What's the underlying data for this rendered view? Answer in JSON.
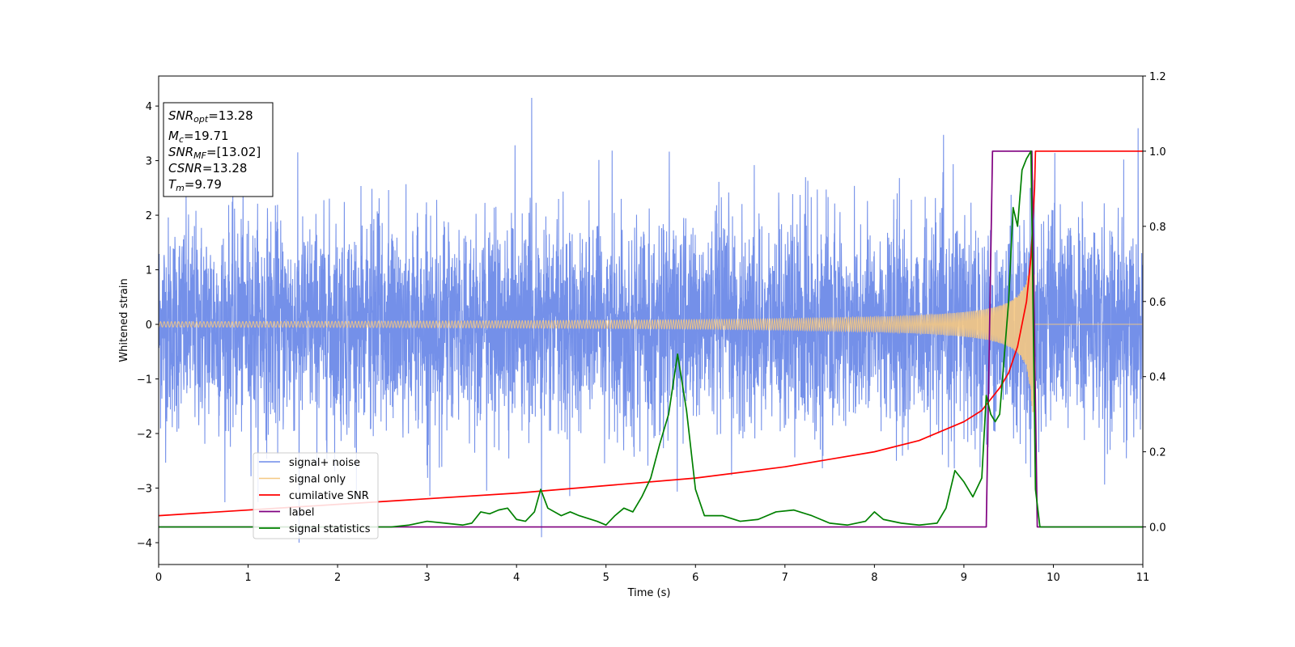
{
  "chart_data": {
    "type": "line",
    "xlabel": "Time (s)",
    "ylabel": "Whitened strain",
    "xlim": [
      0,
      11
    ],
    "ylim": [
      -4.4,
      4.55
    ],
    "y2lim": [
      -0.1,
      1.2
    ],
    "x_ticks": [
      "0",
      "1",
      "2",
      "3",
      "4",
      "5",
      "6",
      "7",
      "8",
      "9",
      "10",
      "11"
    ],
    "y_ticks": [
      "4",
      "3",
      "2",
      "1",
      "0",
      "−1",
      "−2",
      "−3",
      "−4"
    ],
    "y2_ticks": [
      "1.2",
      "1.0",
      "0.8",
      "0.6",
      "0.4",
      "0.2",
      "0.0"
    ],
    "grid": false,
    "legend_position": "lower-left",
    "info_box": {
      "snr_opt": {
        "sym": "SNR",
        "sub": "opt",
        "value": "=13.28"
      },
      "mc": {
        "sym": "M",
        "sub": "c",
        "value": "=19.71"
      },
      "snr_mf": {
        "sym": "SNR",
        "sub": "MF",
        "value": "=[13.02]"
      },
      "csnr": {
        "sym": "CSNR",
        "value": "=13.28"
      },
      "tm": {
        "sym": "T",
        "sub": "m",
        "value": "=9.79"
      }
    },
    "series": [
      {
        "name": "signal+ noise",
        "color": "#6d8ae8",
        "axis": "left",
        "kind": "noise",
        "amplitude_envelope": [
          -3.3,
          4.15
        ],
        "spikes": [
          [
            4.17,
            4.15
          ],
          [
            4.28,
            -3.9
          ],
          [
            1.57,
            -4.0
          ]
        ]
      },
      {
        "name": "signal only",
        "color": "#f5c882",
        "axis": "left",
        "kind": "chirp",
        "start_amplitude": 0.05,
        "peak_time": 9.79,
        "peak_amplitude": 2.0
      },
      {
        "name": "cumilative SNR",
        "color": "#ff0000",
        "axis": "right",
        "x": [
          0,
          2,
          4,
          6,
          7,
          8,
          8.5,
          9,
          9.2,
          9.4,
          9.5,
          9.6,
          9.7,
          9.75,
          9.79,
          9.8,
          11
        ],
        "y": [
          0.03,
          0.06,
          0.09,
          0.13,
          0.16,
          0.2,
          0.23,
          0.28,
          0.31,
          0.37,
          0.41,
          0.48,
          0.6,
          0.72,
          0.9,
          1.0,
          1.0
        ]
      },
      {
        "name": "label",
        "color": "#800080",
        "axis": "right",
        "x": [
          0,
          9.25,
          9.32,
          9.76,
          9.82,
          11
        ],
        "y": [
          0,
          0,
          1,
          1,
          0,
          0
        ]
      },
      {
        "name": "signal statistics",
        "color": "#008000",
        "axis": "right",
        "x": [
          0,
          2.4,
          2.6,
          2.8,
          3.0,
          3.2,
          3.4,
          3.5,
          3.6,
          3.7,
          3.8,
          3.9,
          4.0,
          4.1,
          4.2,
          4.27,
          4.35,
          4.5,
          4.6,
          4.7,
          4.9,
          5.0,
          5.1,
          5.2,
          5.3,
          5.4,
          5.5,
          5.6,
          5.7,
          5.8,
          5.9,
          6.0,
          6.1,
          6.3,
          6.5,
          6.7,
          6.9,
          7.1,
          7.3,
          7.5,
          7.7,
          7.9,
          8.0,
          8.1,
          8.3,
          8.5,
          8.7,
          8.8,
          8.9,
          9.0,
          9.1,
          9.2,
          9.25,
          9.3,
          9.35,
          9.4,
          9.5,
          9.55,
          9.6,
          9.65,
          9.7,
          9.75,
          9.8,
          9.85,
          10.0,
          11
        ],
        "y": [
          0.0,
          0.0,
          0.0,
          0.005,
          0.015,
          0.01,
          0.005,
          0.01,
          0.04,
          0.035,
          0.045,
          0.05,
          0.02,
          0.015,
          0.04,
          0.1,
          0.05,
          0.03,
          0.04,
          0.03,
          0.015,
          0.005,
          0.03,
          0.05,
          0.04,
          0.08,
          0.13,
          0.22,
          0.3,
          0.46,
          0.31,
          0.1,
          0.03,
          0.03,
          0.015,
          0.02,
          0.04,
          0.045,
          0.03,
          0.01,
          0.005,
          0.015,
          0.04,
          0.02,
          0.01,
          0.005,
          0.01,
          0.05,
          0.15,
          0.12,
          0.08,
          0.13,
          0.35,
          0.3,
          0.28,
          0.3,
          0.6,
          0.85,
          0.8,
          0.95,
          0.98,
          1.0,
          0.1,
          0.0,
          0.0,
          0.0
        ]
      }
    ]
  }
}
